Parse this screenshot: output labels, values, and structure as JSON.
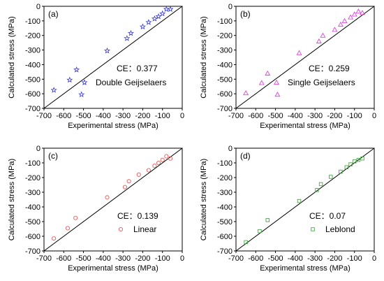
{
  "chart_data": [
    {
      "type": "scatter",
      "panel_label": "(a)",
      "xlabel": "Experimental stress (MPa)",
      "ylabel": "Calculated stress (MPa)",
      "xlim": [
        -700,
        0
      ],
      "ylim": [
        -700,
        0
      ],
      "xticks": [
        -700,
        -600,
        -500,
        -400,
        -300,
        -200,
        -100,
        0
      ],
      "yticks": [
        0,
        -100,
        -200,
        -300,
        -400,
        -500,
        -600,
        -700
      ],
      "marker": "star",
      "color": "#3333dd",
      "reference_line": "y = x",
      "annotation": "CE：0.377",
      "series": [
        {
          "name": "Double Geijselaers",
          "x": [
            -650,
            -570,
            -535,
            -510,
            -380,
            -280,
            -260,
            -200,
            -170,
            -140,
            -120,
            -100,
            -80,
            -60
          ],
          "y": [
            -575,
            -505,
            -435,
            -605,
            -305,
            -220,
            -185,
            -140,
            -110,
            -85,
            -70,
            -50,
            -20,
            -20
          ]
        }
      ]
    },
    {
      "type": "scatter",
      "panel_label": "(b)",
      "xlabel": "Experimental stress (MPa)",
      "ylabel": "Calculated stress (MPa)",
      "xlim": [
        -700,
        0
      ],
      "ylim": [
        -700,
        0
      ],
      "xticks": [
        -700,
        -600,
        -500,
        -400,
        -300,
        -200,
        -100,
        0
      ],
      "yticks": [
        0,
        -100,
        -200,
        -300,
        -400,
        -500,
        -600,
        -700
      ],
      "marker": "triangle",
      "color": "#dd44dd",
      "reference_line": "y = x",
      "annotation": "CE：0.259",
      "series": [
        {
          "name": "Single Geijselaers",
          "x": [
            -650,
            -570,
            -540,
            -490,
            -380,
            -280,
            -260,
            -200,
            -170,
            -150,
            -120,
            -100,
            -80,
            -60
          ],
          "y": [
            -595,
            -525,
            -460,
            -605,
            -320,
            -240,
            -200,
            -160,
            -125,
            -100,
            -75,
            -55,
            -35,
            -45
          ]
        }
      ]
    },
    {
      "type": "scatter",
      "panel_label": "(c)",
      "xlabel": "Experimental stress (MPa)",
      "ylabel": "Calculated stress (MPa)",
      "xlim": [
        -700,
        0
      ],
      "ylim": [
        -700,
        0
      ],
      "xticks": [
        -700,
        -600,
        -500,
        -400,
        -300,
        -200,
        -100,
        0
      ],
      "yticks": [
        0,
        -100,
        -200,
        -300,
        -400,
        -500,
        -600,
        -700
      ],
      "marker": "circle",
      "color": "#ee5555",
      "reference_line": "y = x",
      "annotation": "CE：0.139",
      "series": [
        {
          "name": "Linear",
          "x": [
            -650,
            -580,
            -540,
            -380,
            -290,
            -270,
            -220,
            -170,
            -140,
            -120,
            -100,
            -80,
            -60
          ],
          "y": [
            -615,
            -545,
            -475,
            -335,
            -265,
            -225,
            -180,
            -150,
            -120,
            -100,
            -80,
            -55,
            -70
          ]
        }
      ]
    },
    {
      "type": "scatter",
      "panel_label": "(d)",
      "xlabel": "Experimental stress (MPa)",
      "ylabel": "Calculated stress (MPa)",
      "xlim": [
        -700,
        0
      ],
      "ylim": [
        -700,
        0
      ],
      "xticks": [
        -700,
        -600,
        -500,
        -400,
        -300,
        -200,
        -100,
        0
      ],
      "yticks": [
        0,
        -100,
        -200,
        -300,
        -400,
        -500,
        -600,
        -700
      ],
      "marker": "square",
      "color": "#44aa44",
      "reference_line": "y = x",
      "annotation": "CE：0.07",
      "series": [
        {
          "name": "Leblond",
          "x": [
            -650,
            -580,
            -540,
            -380,
            -290,
            -270,
            -220,
            -170,
            -140,
            -120,
            -100,
            -80,
            -60
          ],
          "y": [
            -640,
            -565,
            -490,
            -360,
            -285,
            -245,
            -195,
            -160,
            -130,
            -110,
            -90,
            -80,
            -70
          ]
        }
      ]
    }
  ]
}
